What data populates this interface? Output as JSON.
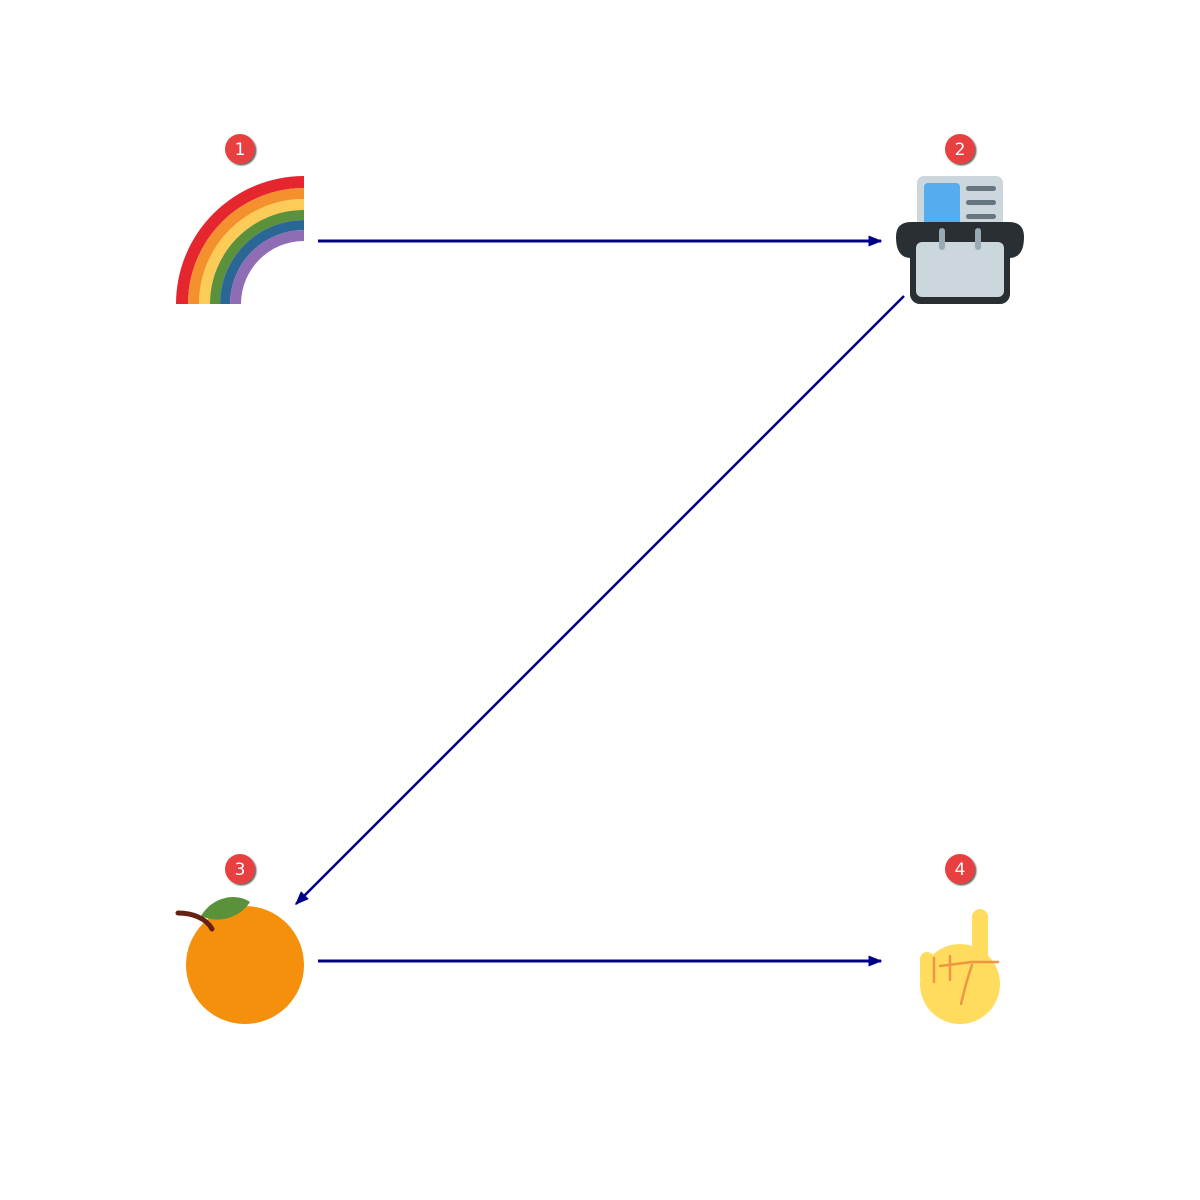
{
  "diagram": {
    "arrow_color": "#00008b",
    "badge_color": "#e8403f",
    "nodes": [
      {
        "id": "node-1",
        "badge": "1",
        "icon": "rainbow-icon"
      },
      {
        "id": "node-2",
        "badge": "2",
        "icon": "card-index-icon"
      },
      {
        "id": "node-3",
        "badge": "3",
        "icon": "tangerine-icon"
      },
      {
        "id": "node-4",
        "badge": "4",
        "icon": "index-pointing-up-icon"
      }
    ],
    "edges": [
      {
        "from": "node-1",
        "to": "node-2"
      },
      {
        "from": "node-2",
        "to": "node-3"
      },
      {
        "from": "node-3",
        "to": "node-4"
      }
    ]
  }
}
